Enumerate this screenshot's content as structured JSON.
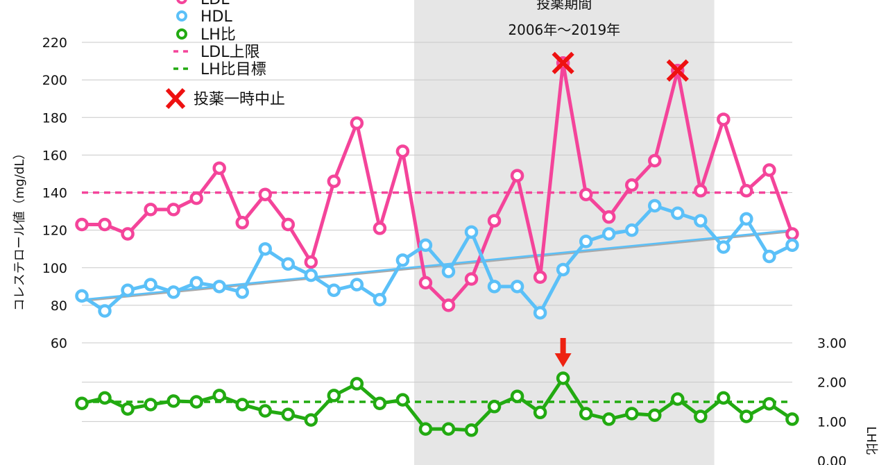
{
  "chart_data": {
    "type": "line",
    "title": "",
    "ylabel": "コレステロール値（mg/dL）",
    "y2label": "LH比",
    "ylim": [
      60,
      220
    ],
    "y2lim": [
      0,
      3
    ],
    "yticks": [
      "60",
      "80",
      "100",
      "120",
      "140",
      "160",
      "180",
      "200",
      "220"
    ],
    "y2ticks": [
      "0.00",
      "1.00",
      "2.00",
      "3.00"
    ],
    "grid": true,
    "legend_position": "top-left",
    "period_annotation": {
      "title": "投薬期間",
      "range": "2006年〜2019年",
      "start_index": 14.5,
      "end_index": 27.6
    },
    "series": [
      {
        "name": "LDL",
        "axis": "left",
        "color": "#f4449a",
        "values": [
          123,
          123,
          118,
          131,
          131,
          137,
          153,
          124,
          139,
          123,
          103,
          146,
          177,
          121,
          162,
          92,
          80,
          94,
          125,
          149,
          95,
          209,
          139,
          127,
          144,
          157,
          205,
          141,
          179,
          141,
          152,
          118
        ]
      },
      {
        "name": "HDL",
        "axis": "left",
        "color": "#5bc0f8",
        "values": [
          85,
          77,
          88,
          91,
          87,
          92,
          90,
          87,
          110,
          102,
          96,
          88,
          91,
          83,
          104,
          112,
          98,
          119,
          90,
          90,
          76,
          99,
          114,
          118,
          120,
          133,
          129,
          125,
          111,
          126,
          106,
          112
        ]
      },
      {
        "name": "LH比",
        "axis": "right",
        "color": "#22aa11",
        "values": [
          1.46,
          1.6,
          1.32,
          1.43,
          1.52,
          1.5,
          1.66,
          1.43,
          1.27,
          1.18,
          1.04,
          1.66,
          1.96,
          1.46,
          1.55,
          0.81,
          0.81,
          0.78,
          1.38,
          1.64,
          1.23,
          2.1,
          1.2,
          1.06,
          1.2,
          1.16,
          1.57,
          1.13,
          1.6,
          1.13,
          1.45,
          1.06
        ]
      }
    ],
    "reference_lines": [
      {
        "name": "LDL上限",
        "axis": "left",
        "value": 140,
        "color": "#f4449a"
      },
      {
        "name": "LH比目標",
        "axis": "right",
        "value": 1.5,
        "color": "#22aa11"
      }
    ],
    "trendline": {
      "series": "HDL",
      "start": 83,
      "end": 120,
      "color": "#5bc0f8"
    },
    "markers": {
      "name": "投薬一時中止",
      "color": "#ee1111",
      "indices": [
        21,
        26
      ]
    },
    "arrow": {
      "index": 21,
      "color": "#ee2211"
    }
  }
}
